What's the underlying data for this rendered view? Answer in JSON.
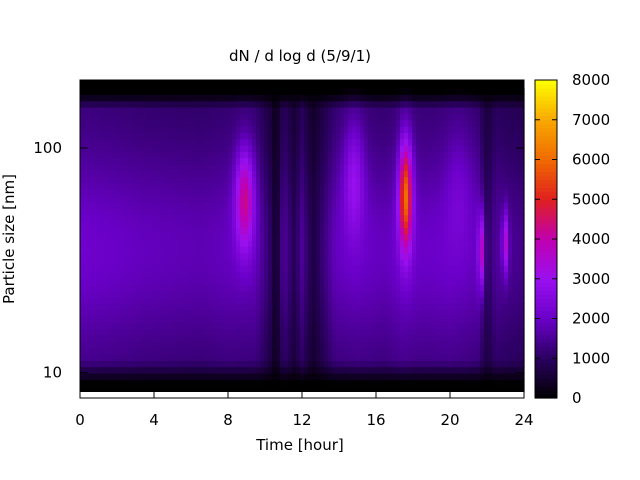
{
  "chart_data": {
    "type": "heatmap",
    "title": "dN / d log d (5/9/1)",
    "xlabel": "Time [hour]",
    "ylabel": "Particle size [nm]",
    "xlim": [
      0,
      24
    ],
    "ylim_nm": [
      8.2,
      185
    ],
    "y_scale": "log",
    "x_ticks": [
      "0",
      "4",
      "8",
      "12",
      "16",
      "20",
      "24"
    ],
    "x_tick_values": [
      0,
      4,
      8,
      12,
      16,
      20,
      24
    ],
    "y_ticks": [
      "10",
      "100"
    ],
    "y_tick_values": [
      10,
      100
    ],
    "colorbar": {
      "range": [
        0,
        8000
      ],
      "ticks": [
        "0",
        "1000",
        "2000",
        "3000",
        "4000",
        "5000",
        "6000",
        "7000",
        "8000"
      ],
      "tick_values": [
        0,
        1000,
        2000,
        3000,
        4000,
        5000,
        6000,
        7000,
        8000
      ],
      "palette": [
        "#000000",
        "#2a0060",
        "#6a00c8",
        "#9a10f0",
        "#c000b0",
        "#e02020",
        "#f06a00",
        "#f8a800",
        "#ffff00"
      ]
    },
    "grid": false,
    "legend": "colorbar-right",
    "background_level": [
      {
        "t": 0.0,
        "v": 2100
      },
      {
        "t": 2.0,
        "v": 2000
      },
      {
        "t": 3.5,
        "v": 1900
      },
      {
        "t": 5.0,
        "v": 1850
      },
      {
        "t": 6.5,
        "v": 1800
      },
      {
        "t": 8.0,
        "v": 1900
      },
      {
        "t": 9.5,
        "v": 1850
      },
      {
        "t": 10.2,
        "v": 1200
      },
      {
        "t": 10.6,
        "v": 400
      },
      {
        "t": 11.0,
        "v": 1600
      },
      {
        "t": 11.6,
        "v": 900
      },
      {
        "t": 12.0,
        "v": 1500
      },
      {
        "t": 12.6,
        "v": 700
      },
      {
        "t": 13.2,
        "v": 1300
      },
      {
        "t": 13.8,
        "v": 1900
      },
      {
        "t": 15.0,
        "v": 2000
      },
      {
        "t": 16.5,
        "v": 1900
      },
      {
        "t": 17.5,
        "v": 2100
      },
      {
        "t": 18.5,
        "v": 2000
      },
      {
        "t": 20.0,
        "v": 2050
      },
      {
        "t": 21.5,
        "v": 1900
      },
      {
        "t": 22.0,
        "v": 1000
      },
      {
        "t": 22.5,
        "v": 1600
      },
      {
        "t": 23.0,
        "v": 1500
      },
      {
        "t": 24.0,
        "v": 1400
      }
    ],
    "peaks": [
      {
        "t": 8.9,
        "d_nm": 60,
        "amp": 2600,
        "width_h": 0.35,
        "width_logd": 0.16
      },
      {
        "t": 14.8,
        "d_nm": 75,
        "amp": 1300,
        "width_h": 0.4,
        "width_logd": 0.18
      },
      {
        "t": 17.6,
        "d_nm": 62,
        "amp": 4200,
        "width_h": 0.25,
        "width_logd": 0.17
      },
      {
        "t": 20.5,
        "d_nm": 70,
        "amp": 500,
        "width_h": 0.5,
        "width_logd": 0.2
      },
      {
        "t": 21.7,
        "d_nm": 35,
        "amp": 2200,
        "width_h": 0.12,
        "width_logd": 0.12
      },
      {
        "t": 23.0,
        "d_nm": 38,
        "amp": 2000,
        "width_h": 0.12,
        "width_logd": 0.1
      }
    ]
  }
}
